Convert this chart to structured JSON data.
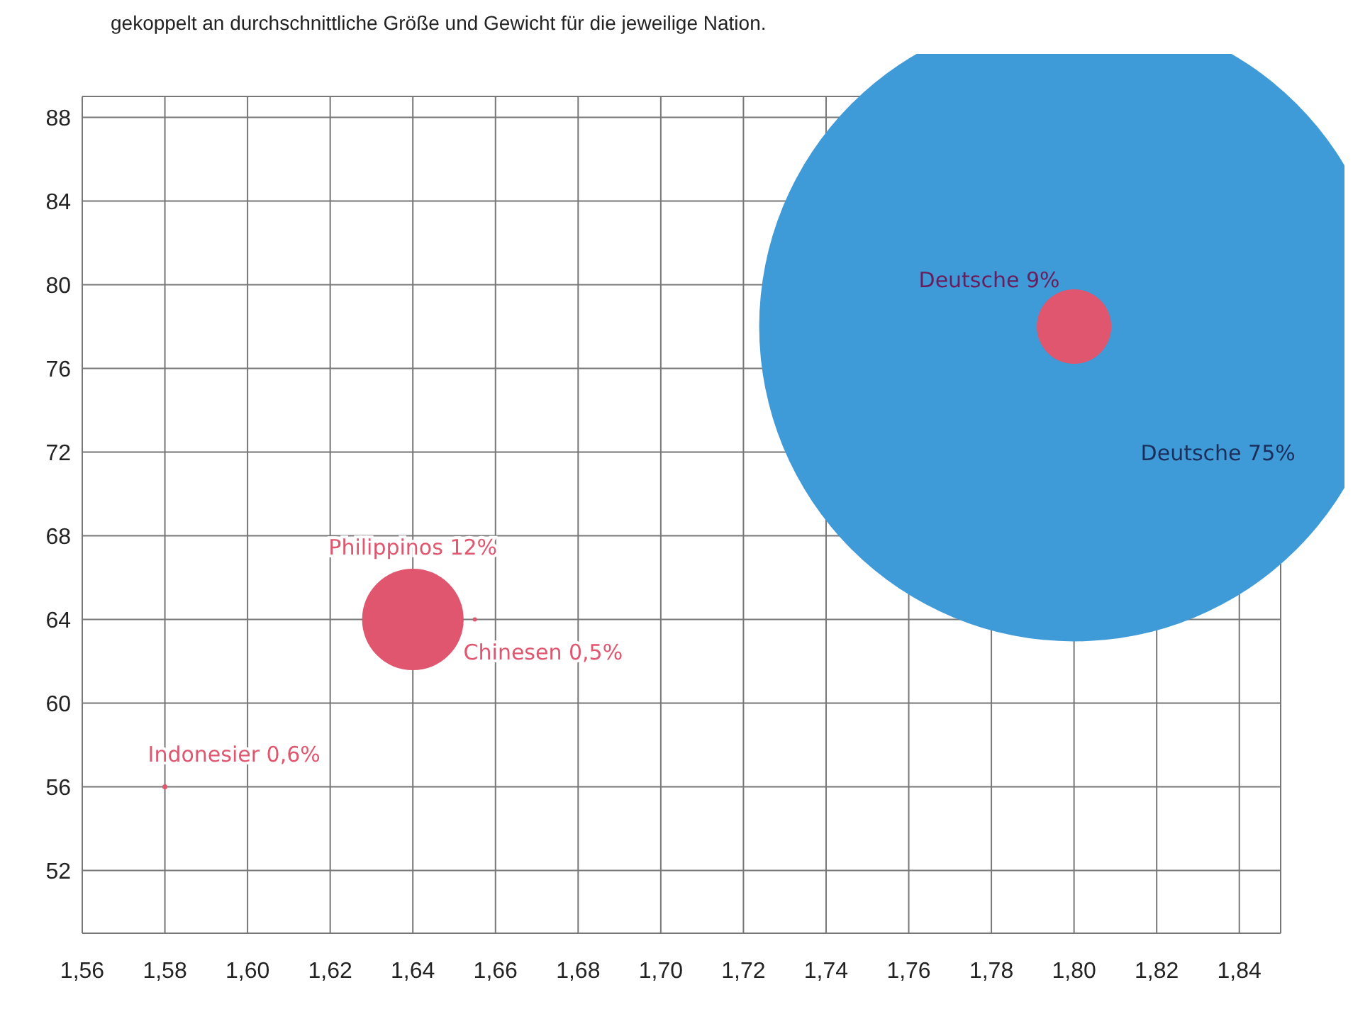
{
  "chart_data": {
    "type": "bubble",
    "title": "gekoppelt an durchschnittliche Größe und Gewicht für die jeweilige Nation.",
    "series": [
      {
        "color": "#3f9ad8",
        "x": [
          1.8
        ],
        "values": [
          78
        ],
        "sizes": [
          1
        ],
        "value_labels": [
          "Deutsche 75%"
        ]
      },
      {
        "color": "#e0566e",
        "x": [
          1.58,
          1.64,
          1.655,
          1.8
        ],
        "values": [
          56,
          64,
          64,
          78
        ],
        "sizes": [
          6.4e-05,
          0.026,
          4.4e-05,
          0.014
        ],
        "value_labels": [
          "Indonesier 0,6%",
          "Philippinos 12%",
          "Chinesen 0,5%",
          "Deutsche 9%"
        ]
      }
    ],
    "xlim": [
      1.56,
      1.85
    ],
    "xticks": [
      {
        "value": 1.56,
        "label": "1,56"
      },
      {
        "value": 1.58,
        "label": "1,58"
      },
      {
        "value": 1.6,
        "label": "1,60"
      },
      {
        "value": 1.62,
        "label": "1,62"
      },
      {
        "value": 1.64,
        "label": "1,64"
      },
      {
        "value": 1.66,
        "label": "1,66"
      },
      {
        "value": 1.68,
        "label": "1,68"
      },
      {
        "value": 1.7,
        "label": "1,70"
      },
      {
        "value": 1.72,
        "label": "1,72"
      },
      {
        "value": 1.74,
        "label": "1,74"
      },
      {
        "value": 1.76,
        "label": "1,76"
      },
      {
        "value": 1.78,
        "label": "1,78"
      },
      {
        "value": 1.8,
        "label": "1,80"
      },
      {
        "value": 1.82,
        "label": "1,82"
      },
      {
        "value": 1.84,
        "label": "1,84"
      }
    ],
    "ylim": [
      49,
      89
    ],
    "yticks": [
      52,
      56,
      60,
      64,
      68,
      72,
      76,
      80,
      84,
      88
    ],
    "grid": true
  }
}
